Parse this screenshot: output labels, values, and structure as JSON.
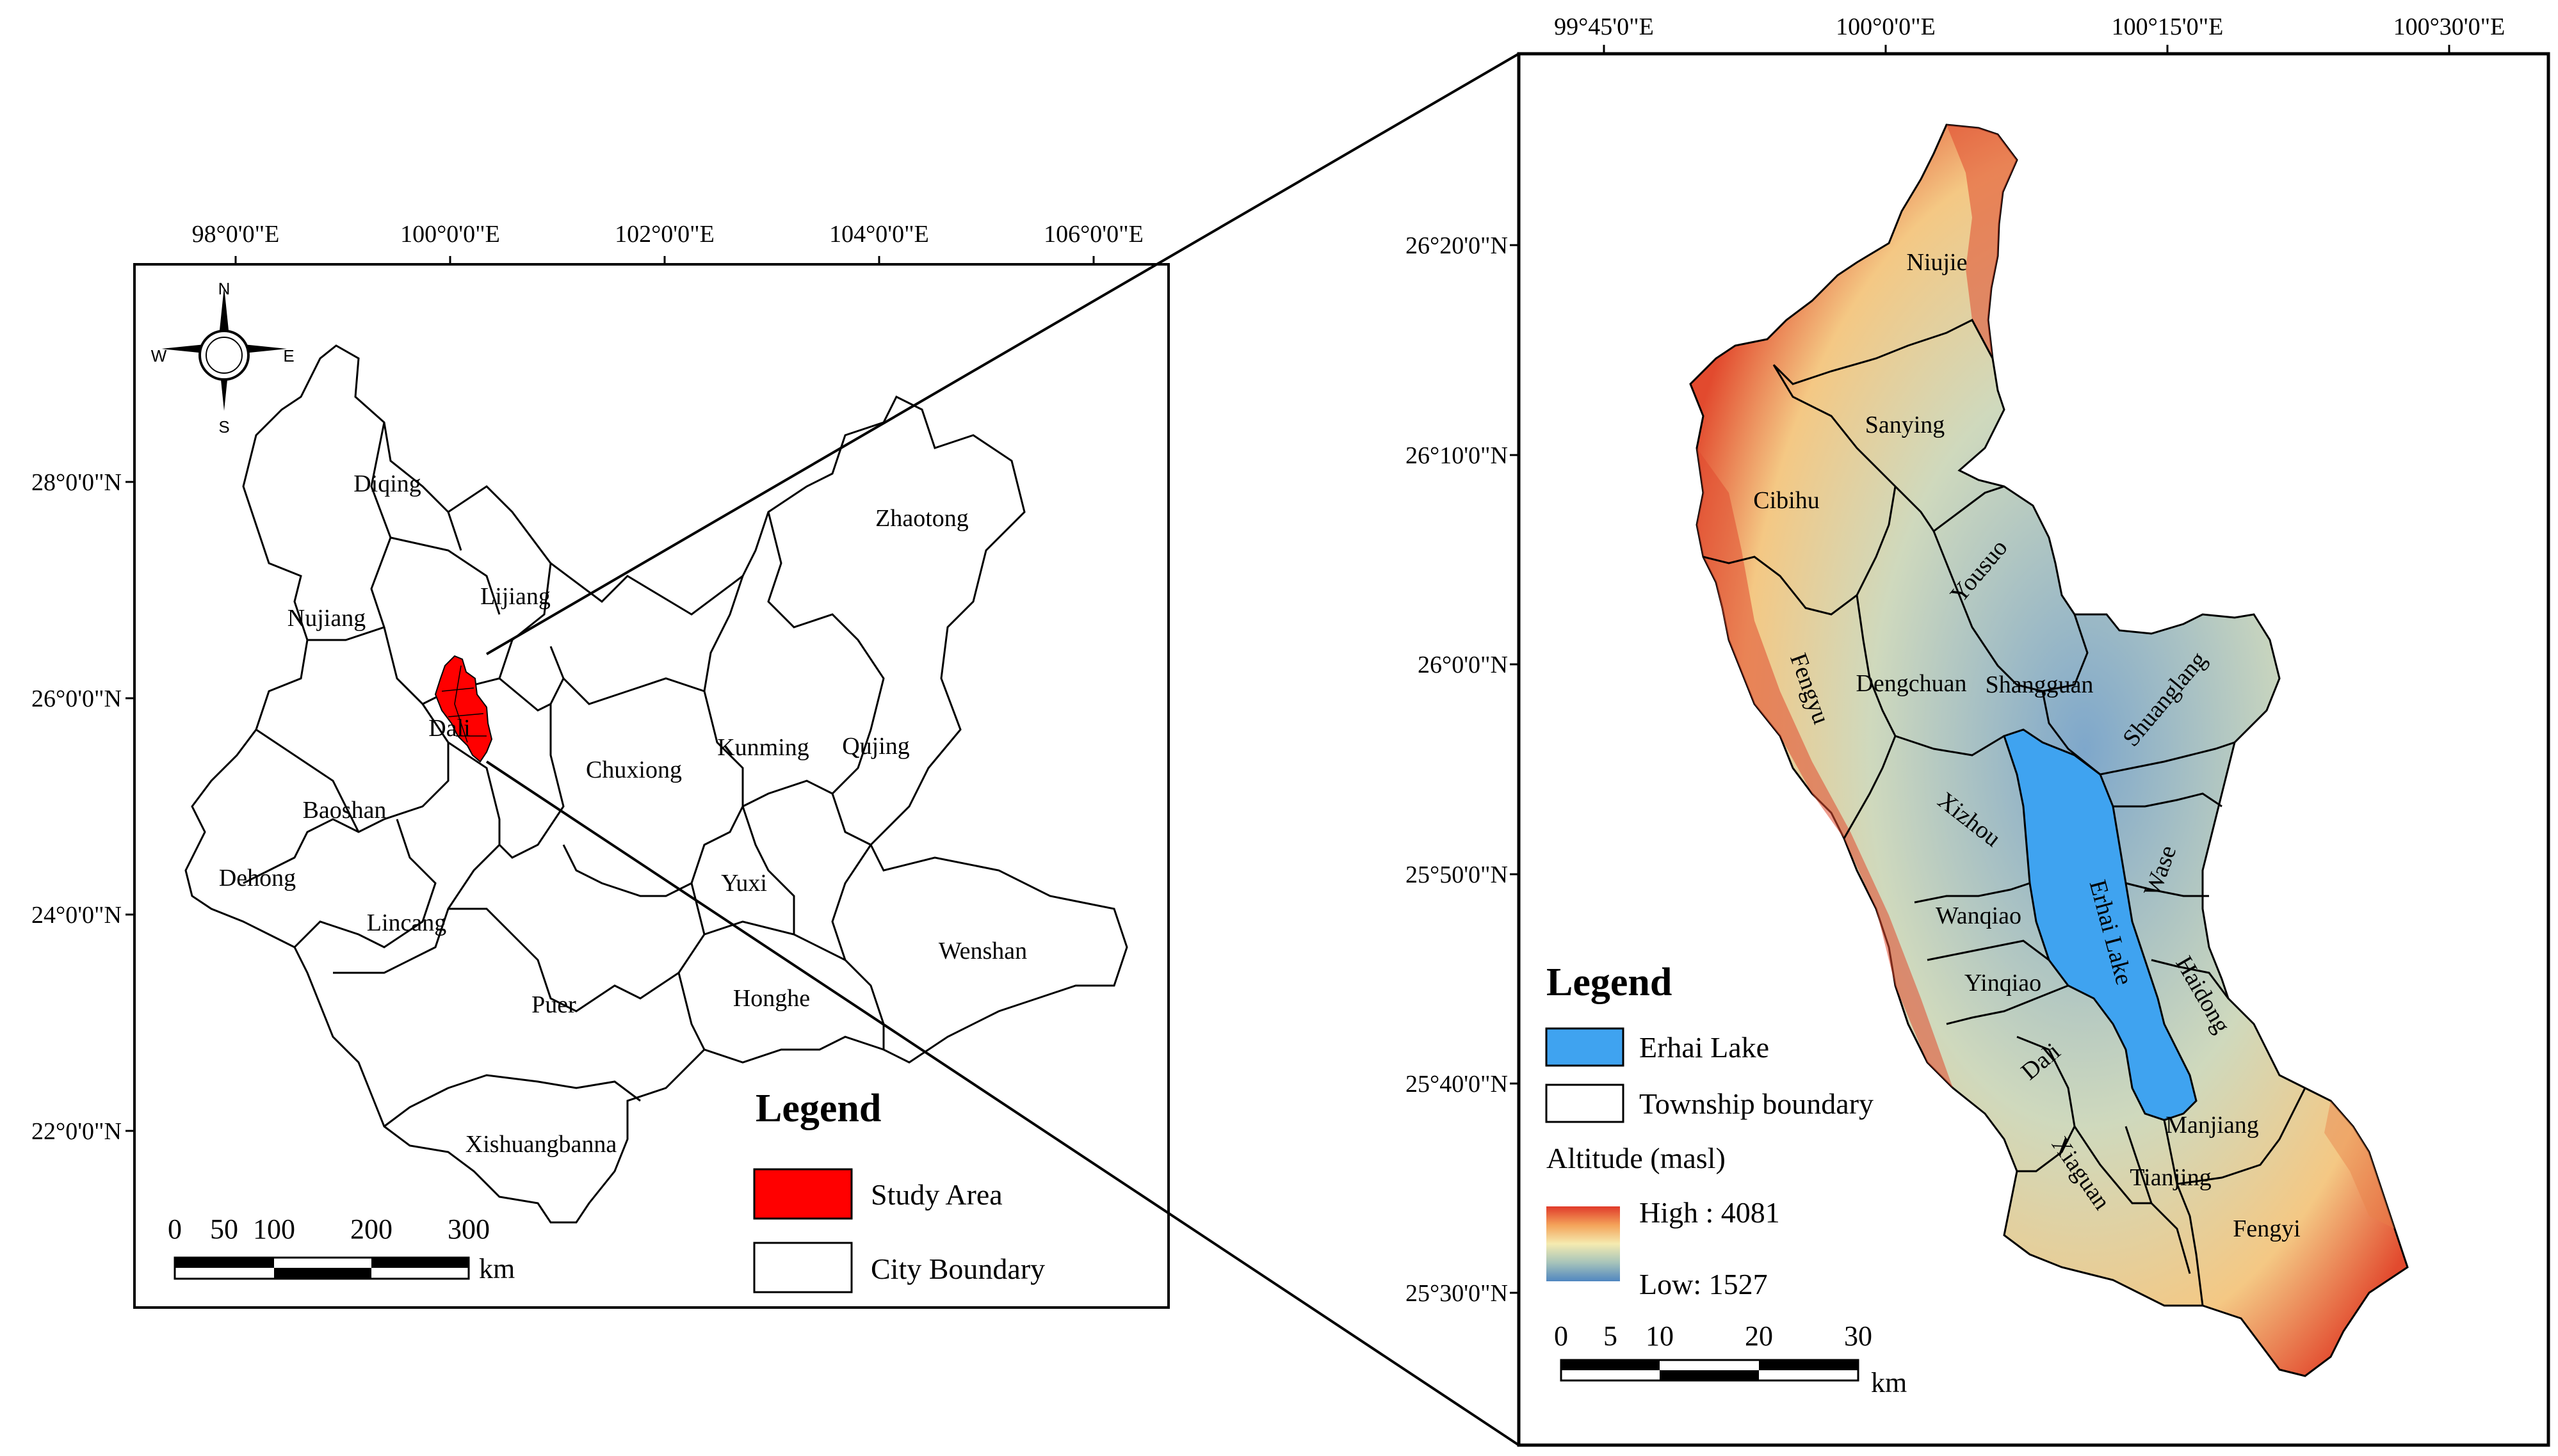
{
  "left_panel": {
    "top_ticks": [
      "98°0'0\"E",
      "100°0'0\"E",
      "102°0'0\"E",
      "104°0'0\"E",
      "106°0'0\"E"
    ],
    "left_ticks": [
      "28°0'0\"N",
      "26°0'0\"N",
      "24°0'0\"N",
      "22°0'0\"N"
    ],
    "cities": [
      "Diqing",
      "Lijiang",
      "Nujiang",
      "Zhaotong",
      "Dali",
      "Chuxiong",
      "Kunming",
      "Qujing",
      "Baoshan",
      "Dehong",
      "Lincang",
      "Yuxi",
      "Wenshan",
      "Puer",
      "Honghe",
      "Xishuangbanna"
    ],
    "compass": {
      "n": "N",
      "s": "S",
      "e": "E",
      "w": "W"
    },
    "legend": {
      "title": "Legend",
      "items": [
        {
          "label": "Study Area",
          "color": "#ff0000"
        },
        {
          "label": "City  Boundary",
          "color": "#ffffff"
        }
      ]
    },
    "scale": {
      "labels": [
        "0",
        "50",
        "100",
        "200",
        "300"
      ],
      "unit": "km"
    }
  },
  "right_panel": {
    "top_ticks": [
      "99°45'0\"E",
      "100°0'0\"E",
      "100°15'0\"E",
      "100°30'0\"E"
    ],
    "left_ticks": [
      "26°20'0\"N",
      "26°10'0\"N",
      "26°0'0\"N",
      "25°50'0\"N",
      "25°40'0\"N",
      "25°30'0\"N"
    ],
    "townships": [
      "Niujie",
      "Sanying",
      "Cibihu",
      "Yousuo",
      "Fengyu",
      "Dengchuan",
      "Shangguan",
      "Shuanglang",
      "Xizhou",
      "Erhai Lake",
      "Wase",
      "Wanqiao",
      "Yinqiao",
      "Haidong",
      "Dali",
      "Manjiang",
      "Xiaguan",
      "Tianjing",
      "Fengyi"
    ],
    "legend": {
      "title": "Legend",
      "items": [
        {
          "label": "Erhai  Lake",
          "color": "#3fa3f0"
        },
        {
          "label": "Township  boundary",
          "color": "#ffffff"
        }
      ],
      "altitude_title": "Altitude (masl)",
      "high": "High : 4081",
      "low": "Low: 1527",
      "ramp": [
        "#e03a2a",
        "#f4a35a",
        "#f5ebb0",
        "#a7c4ba",
        "#4f86c0"
      ]
    },
    "scale": {
      "labels": [
        "0",
        "5",
        "10",
        "20",
        "30"
      ],
      "unit": "km"
    }
  }
}
